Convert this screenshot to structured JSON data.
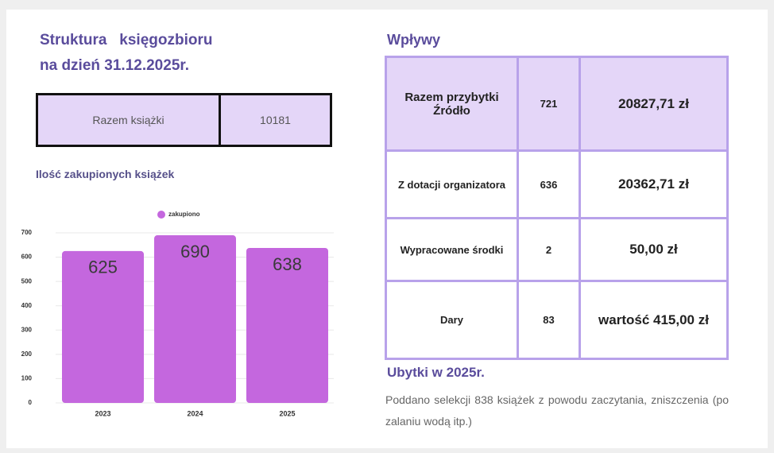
{
  "header": {
    "title": [
      "Struktura   księgozbioru",
      "na dzień 31.12.2025r."
    ]
  },
  "summary": {
    "label": "Razem książki",
    "value": "10181"
  },
  "chart_data": {
    "type": "bar",
    "title": "Ilość zakupionych książek",
    "categories": [
      "2023",
      "2024",
      "2025"
    ],
    "series": [
      {
        "name": "zakupiono",
        "color": "#c467de",
        "values": [
          625,
          690,
          638
        ]
      }
    ],
    "ylim": [
      0,
      700
    ],
    "yticks": [
      0,
      100,
      200,
      300,
      400,
      500,
      600,
      700
    ],
    "grid": true
  },
  "income": {
    "title": "Wpływy",
    "rows": [
      [
        "Razem przybytki Źródło",
        "721",
        "20827,71 zł"
      ],
      [
        "Z dotacji organizatora",
        "636",
        "20362,71 zł"
      ],
      [
        "Wypracowane środki",
        "2",
        "50,00 zł"
      ],
      [
        "Dary",
        "83",
        "wartość 415,00 zł"
      ]
    ]
  },
  "losses": {
    "title": "Ubytki w 2025r.",
    "text": "Poddano selekcji 838 książek z powodu zaczytania, zniszczenia (po zalaniu wodą itp.)"
  }
}
